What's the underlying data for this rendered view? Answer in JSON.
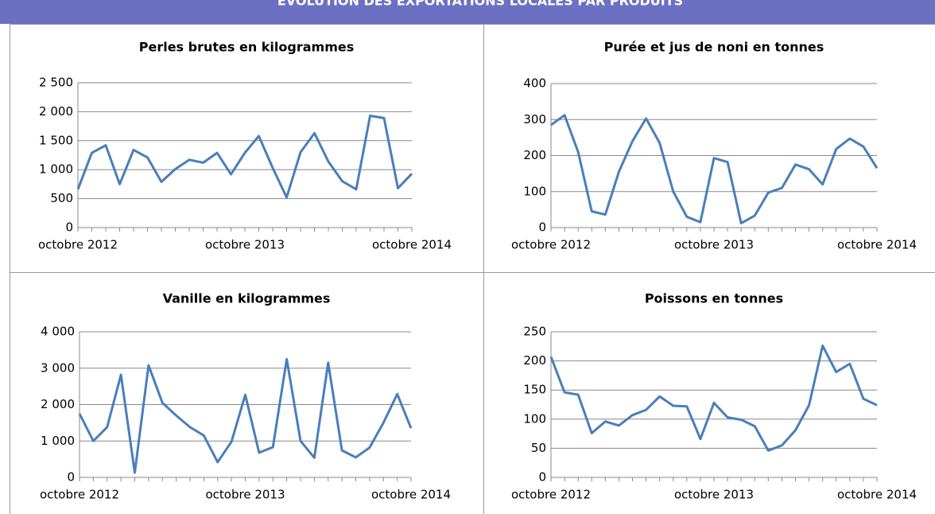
{
  "title": "ÉVOLUTION DES EXPORTATIONS LOCALES PAR PRODUITS",
  "chart_data": [
    {
      "type": "line",
      "title": "Perles brutes en kilogrammes",
      "color": "#4a7ebb",
      "grid": true,
      "categories": [
        "octobre 2012",
        null,
        null,
        null,
        null,
        null,
        null,
        null,
        null,
        null,
        null,
        null,
        "octobre 2013",
        null,
        null,
        null,
        null,
        null,
        null,
        null,
        null,
        null,
        null,
        null,
        "octobre 2014"
      ],
      "values": [
        660,
        1290,
        1420,
        750,
        1340,
        1210,
        790,
        1010,
        1170,
        1120,
        1290,
        920,
        1290,
        1580,
        1030,
        520,
        1300,
        1630,
        1140,
        800,
        660,
        1930,
        1890,
        680,
        930
      ],
      "ylim": [
        0,
        2500
      ],
      "yticks": [
        0,
        500,
        {
          "value": 1000,
          "label": "1 000"
        },
        {
          "value": 1500,
          "label": "1 500"
        },
        {
          "value": 2000,
          "label": "2 000"
        },
        {
          "value": 2500,
          "label": "2 500"
        }
      ]
    },
    {
      "type": "line",
      "title": "Purée et jus de noni en tonnes",
      "color": "#4a7ebb",
      "grid": true,
      "categories": [
        "octobre 2012",
        null,
        null,
        null,
        null,
        null,
        null,
        null,
        null,
        null,
        null,
        null,
        "octobre 2013",
        null,
        null,
        null,
        null,
        null,
        null,
        null,
        null,
        null,
        null,
        null,
        "octobre 2014"
      ],
      "values": [
        285,
        312,
        210,
        45,
        36,
        155,
        240,
        303,
        235,
        100,
        30,
        15,
        193,
        182,
        12,
        33,
        97,
        110,
        175,
        162,
        120,
        218,
        247,
        225,
        165
      ],
      "ylim": [
        0,
        400
      ],
      "yticks": [
        0,
        100,
        200,
        300,
        400
      ]
    },
    {
      "type": "line",
      "title": "Vanille en kilogrammes",
      "color": "#4a7ebb",
      "grid": true,
      "categories": [
        "octobre 2012",
        null,
        null,
        null,
        null,
        null,
        null,
        null,
        null,
        null,
        null,
        null,
        "octobre 2013",
        null,
        null,
        null,
        null,
        null,
        null,
        null,
        null,
        null,
        null,
        null,
        "octobre 2014"
      ],
      "values": [
        1750,
        1000,
        1380,
        2820,
        130,
        3080,
        2050,
        1700,
        1380,
        1150,
        420,
        980,
        2270,
        680,
        830,
        3250,
        1000,
        540,
        3150,
        740,
        550,
        820,
        1500,
        2290,
        1350
      ],
      "ylim": [
        0,
        4000
      ],
      "yticks": [
        0,
        {
          "value": 1000,
          "label": "1 000"
        },
        {
          "value": 2000,
          "label": "2 000"
        },
        {
          "value": 3000,
          "label": "3 000"
        },
        {
          "value": 4000,
          "label": "4 000"
        }
      ]
    },
    {
      "type": "line",
      "title": "Poissons en tonnes",
      "color": "#4a7ebb",
      "grid": true,
      "categories": [
        "octobre 2012",
        null,
        null,
        null,
        null,
        null,
        null,
        null,
        null,
        null,
        null,
        null,
        "octobre 2013",
        null,
        null,
        null,
        null,
        null,
        null,
        null,
        null,
        null,
        null,
        null,
        "octobre 2014"
      ],
      "values": [
        207,
        146,
        142,
        76,
        96,
        89,
        107,
        116,
        139,
        123,
        122,
        66,
        128,
        103,
        99,
        88,
        46,
        55,
        81,
        124,
        226,
        181,
        195,
        135,
        124
      ],
      "ylim": [
        0,
        250
      ],
      "yticks": [
        0,
        50,
        100,
        150,
        200,
        250
      ]
    }
  ]
}
